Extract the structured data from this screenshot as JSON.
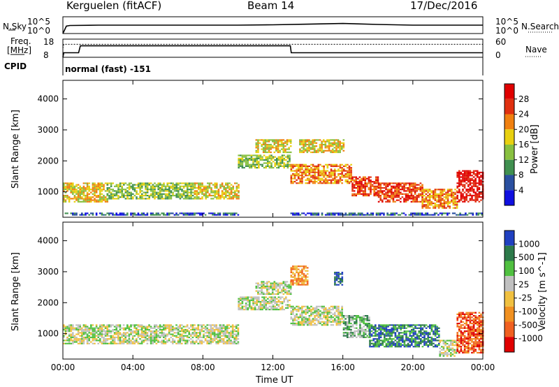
{
  "header": {
    "station": "Kerguelen (fitACF)",
    "beam": "Beam 14",
    "date": "17/Dec/2016"
  },
  "panel_labels": {
    "nsky": "N.Sky",
    "nsearch": "N.Search",
    "freq_line1": "Freq.",
    "freq_line2": "[MHz]",
    "nave": "Nave",
    "cpid": "CPID",
    "cpid_value": "normal (fast) -151"
  },
  "chart_data": [
    {
      "type": "line",
      "title": "N.Sky / N.Search",
      "ylabel": "N.Sky",
      "y2label": "N.Search",
      "y_ticks": [
        "10^5",
        "10^0"
      ],
      "y2_ticks": [
        "10^5",
        "10^0"
      ],
      "x": [
        0,
        0.2,
        0.4,
        2,
        4,
        6,
        8,
        10,
        12,
        14,
        16,
        18,
        20,
        22,
        24
      ],
      "series": [
        {
          "name": "N.Sky",
          "values": [
            0,
            2.2,
            2.4,
            2.5,
            2.5,
            2.5,
            2.5,
            2.5,
            2.6,
            2.8,
            3.0,
            2.7,
            2.5,
            2.5,
            2.5
          ]
        }
      ],
      "ylim": [
        0,
        5
      ]
    },
    {
      "type": "line",
      "title": "Freq / Nave",
      "ylabel": "Freq. [MHz]",
      "y2label": "Nave",
      "y_ticks": [
        18,
        8
      ],
      "y2_ticks": [
        60,
        0
      ],
      "x": [
        0,
        0.05,
        0.9,
        1.0,
        13.0,
        13.05,
        24
      ],
      "series": [
        {
          "name": "Freq.",
          "values": [
            8,
            10.5,
            10.5,
            14.3,
            14.3,
            10.5,
            10.5
          ]
        },
        {
          "name": "Nave",
          "values": [
            30,
            43,
            43,
            43,
            43,
            43,
            43
          ]
        }
      ],
      "ylim": [
        8,
        18
      ],
      "y2lim": [
        0,
        60
      ]
    },
    {
      "type": "heatmap",
      "title": "Power",
      "ylabel": "Slant Range [km]",
      "colorbar_label": "Power [dB]",
      "colorbar_ticks": [
        28,
        24,
        20,
        16,
        12,
        8,
        4
      ],
      "ylim": [
        180,
        4600
      ],
      "y_ticks": [
        1000,
        2000,
        3000,
        4000
      ],
      "colors": [
        "#1010e0",
        "#2a50a0",
        "#409050",
        "#88c040",
        "#e8d010",
        "#f08010",
        "#e03010",
        "#e00000"
      ],
      "regions": [
        {
          "x": [
            0.0,
            2.5
          ],
          "y": [
            700,
            1300
          ],
          "level": 4
        },
        {
          "x": [
            2.5,
            7.5
          ],
          "y": [
            800,
            1300
          ],
          "level": 3
        },
        {
          "x": [
            7.5,
            10.0
          ],
          "y": [
            800,
            1300
          ],
          "level": 4
        },
        {
          "x": [
            0.0,
            10.0
          ],
          "y": [
            250,
            330
          ],
          "level": 1
        },
        {
          "x": [
            10.0,
            13.0
          ],
          "y": [
            1800,
            2200
          ],
          "level": 3
        },
        {
          "x": [
            11.0,
            13.0
          ],
          "y": [
            2300,
            2700
          ],
          "level": 4
        },
        {
          "x": [
            13.0,
            16.5
          ],
          "y": [
            1300,
            1900
          ],
          "level": 5
        },
        {
          "x": [
            13.5,
            16.0
          ],
          "y": [
            2300,
            2700
          ],
          "level": 4
        },
        {
          "x": [
            16.5,
            18.0
          ],
          "y": [
            900,
            1500
          ],
          "level": 6
        },
        {
          "x": [
            18.0,
            20.5
          ],
          "y": [
            700,
            1300
          ],
          "level": 6
        },
        {
          "x": [
            20.5,
            22.5
          ],
          "y": [
            500,
            1100
          ],
          "level": 5
        },
        {
          "x": [
            22.5,
            24.0
          ],
          "y": [
            700,
            1700
          ],
          "level": 7
        },
        {
          "x": [
            13.0,
            24.0
          ],
          "y": [
            250,
            330
          ],
          "level": 1
        }
      ]
    },
    {
      "type": "heatmap",
      "title": "Velocity",
      "ylabel": "Slant Range [km]",
      "colorbar_label": "Velocity [m s^-1]",
      "colorbar_ticks": [
        "1000",
        "500",
        "100",
        "25",
        "-25",
        "-100",
        "-500",
        "-1000"
      ],
      "ylim": [
        180,
        4600
      ],
      "y_ticks": [
        1000,
        2000,
        3000,
        4000
      ],
      "colors": [
        "#2040c0",
        "#2d7a4a",
        "#50c040",
        "#c0c0c0",
        "#f0c040",
        "#f09020",
        "#f06020",
        "#e00000"
      ],
      "regions": [
        {
          "x": [
            0.0,
            10.0
          ],
          "y": [
            700,
            1300
          ],
          "level": 3
        },
        {
          "x": [
            10.0,
            13.0
          ],
          "y": [
            1800,
            2200
          ],
          "level": 3
        },
        {
          "x": [
            11.0,
            13.0
          ],
          "y": [
            2300,
            2700
          ],
          "level": 3
        },
        {
          "x": [
            13.0,
            16.0
          ],
          "y": [
            1300,
            1900
          ],
          "level": 3
        },
        {
          "x": [
            13.0,
            14.0
          ],
          "y": [
            2600,
            3200
          ],
          "level": 5
        },
        {
          "x": [
            15.5,
            16.0
          ],
          "y": [
            2600,
            3000
          ],
          "level": 0
        },
        {
          "x": [
            16.0,
            17.5
          ],
          "y": [
            900,
            1600
          ],
          "level": 2
        },
        {
          "x": [
            17.5,
            21.5
          ],
          "y": [
            600,
            1300
          ],
          "level": 1
        },
        {
          "x": [
            21.5,
            22.5
          ],
          "y": [
            300,
            800
          ],
          "level": 3
        },
        {
          "x": [
            22.5,
            24.0
          ],
          "y": [
            400,
            1700
          ],
          "level": 6
        }
      ]
    }
  ],
  "x_axis": {
    "label": "Time UT",
    "ticks": [
      "00:00",
      "04:00",
      "08:00",
      "12:00",
      "16:00",
      "20:00",
      "00:00"
    ],
    "xlim": [
      0,
      24
    ]
  }
}
